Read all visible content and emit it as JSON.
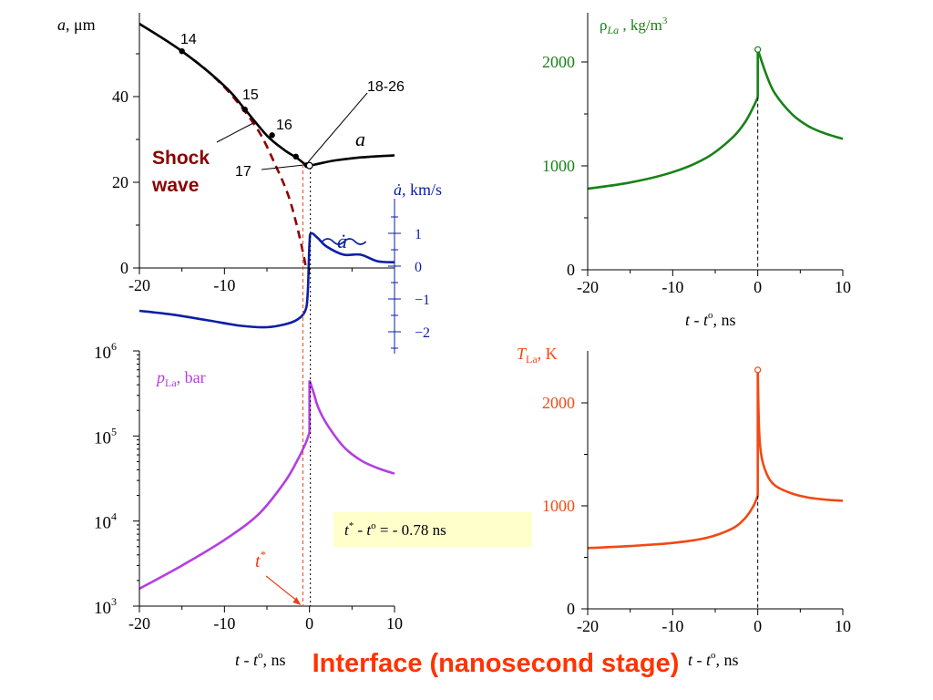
{
  "footer_title": "Interface (nanosecond stage)",
  "colors": {
    "radius": "#000000",
    "shock": "#8b0000",
    "velocity": "#0a1fa6",
    "density": "#178217",
    "pressure": "#b43ee0",
    "temperature": "#f04a14",
    "annotation_box": "#ffffcc",
    "tstar": "#e8411b"
  },
  "panels": {
    "a": {
      "ylabel_sym": "a",
      "ylabel_unit": ",  μm",
      "y_ticks": [
        "0",
        "20",
        "40"
      ],
      "x_ticks": [
        "-20",
        "-10"
      ],
      "curve_label": "a",
      "shock_label_line1": "Shock",
      "shock_label_line2": "wave",
      "point_labels": [
        "14",
        "15",
        "16",
        "17",
        "18-26"
      ],
      "vel_axis_label_sym": "ȧ,",
      "vel_axis_label_unit": " km/s",
      "vel_curve_label": "ȧ",
      "vel_ticks": [
        "1",
        "0",
        "−1",
        "−2"
      ]
    },
    "rho": {
      "label_sym": "ρ",
      "label_sub": "La",
      "label_unit": " ,  kg/m",
      "label_sup": "3",
      "y_ticks": [
        "0",
        "1000",
        "2000"
      ],
      "x_ticks": [
        "-20",
        "-10",
        "0",
        "10"
      ],
      "xlabel_t": "t",
      "xlabel_rest": " - ",
      "xlabel_t2": "t",
      "xlabel_sup": "o",
      "xlabel_unit": ", ns"
    },
    "p": {
      "label_sym": "p",
      "label_sub": "La",
      "label_unit": ", bar",
      "y_ticks": [
        {
          "base": "10",
          "exp": "3"
        },
        {
          "base": "10",
          "exp": "4"
        },
        {
          "base": "10",
          "exp": "5"
        },
        {
          "base": "10",
          "exp": "6"
        }
      ],
      "x_ticks": [
        "-20",
        "-10",
        "0",
        "10"
      ],
      "xlabel_t": "t",
      "xlabel_rest": " - ",
      "xlabel_t2": "t",
      "xlabel_sup": "o",
      "xlabel_unit": ", ns",
      "tstar_sym": "t",
      "tstar_sup": "*",
      "note_t1": "t",
      "note_sup1": "*",
      "note_mid": " - ",
      "note_t2": "t",
      "note_sup2": "o",
      "note_rest": " = - 0.78 ns"
    },
    "T": {
      "label_sym": "T",
      "label_sub": "La",
      "label_unit": ", K",
      "y_ticks": [
        "0",
        "1000",
        "2000"
      ],
      "x_ticks": [
        "-20",
        "-10",
        "0",
        "10"
      ],
      "xlabel_t": "t",
      "xlabel_rest": " - ",
      "xlabel_t2": "t",
      "xlabel_sup": "o",
      "xlabel_unit": ", ns"
    }
  },
  "chart_data": [
    {
      "type": "line",
      "xlim": [
        -20,
        10
      ],
      "ylim": [
        0,
        57
      ],
      "xlabel": "",
      "ylabel": "a ,  μm",
      "series": [
        {
          "name": "a",
          "x": [
            -20,
            -15,
            -10,
            -7.5,
            -5,
            -3,
            -1.5,
            -0.5,
            0,
            1,
            3,
            6,
            10
          ],
          "y": [
            57,
            50.6,
            42.5,
            36.8,
            30.9,
            27.6,
            25.7,
            24.2,
            23.9,
            24.3,
            25.1,
            25.8,
            26.3
          ]
        },
        {
          "name": "Shock wave",
          "x": [
            -15,
            -12,
            -9,
            -6,
            -4,
            -2.5,
            -1.5,
            -0.8,
            -0.4
          ],
          "y": [
            50.6,
            46,
            40,
            32,
            24,
            17,
            10,
            4,
            0
          ]
        },
        {
          "name": "ȧ",
          "axis": "right",
          "ylim": [
            -2.6,
            2.4
          ],
          "x": [
            -20,
            -16,
            -12,
            -8,
            -5,
            -3,
            -1.5,
            -0.5,
            -0.2,
            0,
            0.2,
            1,
            2,
            4,
            6,
            8,
            10
          ],
          "y": [
            -1.36,
            -1.48,
            -1.65,
            -1.82,
            -1.86,
            -1.78,
            -1.64,
            -1.36,
            -0.8,
            0.7,
            1.0,
            0.85,
            0.6,
            0.35,
            0.35,
            0.15,
            0.12
          ]
        }
      ],
      "markers": {
        "labels": [
          "14",
          "15",
          "16",
          "17",
          "18-26"
        ],
        "x": [
          -15,
          -7.6,
          -4.4,
          -1.6,
          -0.3
        ],
        "y": [
          50.6,
          37,
          31,
          26,
          24
        ]
      }
    },
    {
      "type": "line",
      "xlim": [
        -20,
        10
      ],
      "ylim": [
        0,
        2400
      ],
      "xlabel": "t - t° , ns",
      "ylabel": "ρLa , kg/m3",
      "series": [
        {
          "name": "ρLa",
          "x": [
            -20,
            -15,
            -10,
            -6,
            -3,
            -1.5,
            -0.5,
            0,
            0,
            1,
            2,
            4,
            6,
            8,
            10
          ],
          "y": [
            780,
            840,
            940,
            1080,
            1270,
            1420,
            1570,
            1660,
            2120,
            1880,
            1700,
            1500,
            1380,
            1310,
            1260
          ]
        }
      ]
    },
    {
      "type": "line",
      "xlim": [
        -20,
        10
      ],
      "ylim": [
        1000,
        1000000
      ],
      "yscale": "log",
      "xlabel": "t - t° , ns",
      "ylabel": "pLa, bar",
      "series": [
        {
          "name": "pLa",
          "x": [
            -20,
            -15,
            -10,
            -6,
            -3,
            -1.5,
            -0.5,
            0,
            0,
            0.5,
            1,
            2,
            4,
            6,
            8,
            10
          ],
          "y": [
            1600,
            3000,
            6000,
            12000,
            28000,
            50000,
            80000,
            110000,
            450000,
            320000,
            220000,
            140000,
            75000,
            52000,
            42000,
            36000
          ]
        }
      ],
      "annotations": [
        "t* - t° = - 0.78 ns",
        "t*"
      ],
      "tstar_x": -0.78
    },
    {
      "type": "line",
      "xlim": [
        -20,
        10
      ],
      "ylim": [
        0,
        2400
      ],
      "xlabel": "t - t° , ns",
      "ylabel": "TLa, K",
      "series": [
        {
          "name": "TLa",
          "x": [
            -20,
            -15,
            -10,
            -6,
            -3,
            -1.5,
            -0.5,
            0,
            0,
            0.15,
            0.4,
            1,
            2,
            4,
            6,
            8,
            10
          ],
          "y": [
            590,
            610,
            640,
            690,
            780,
            880,
            1000,
            1100,
            2320,
            1750,
            1500,
            1320,
            1200,
            1120,
            1080,
            1060,
            1050
          ]
        }
      ]
    }
  ]
}
